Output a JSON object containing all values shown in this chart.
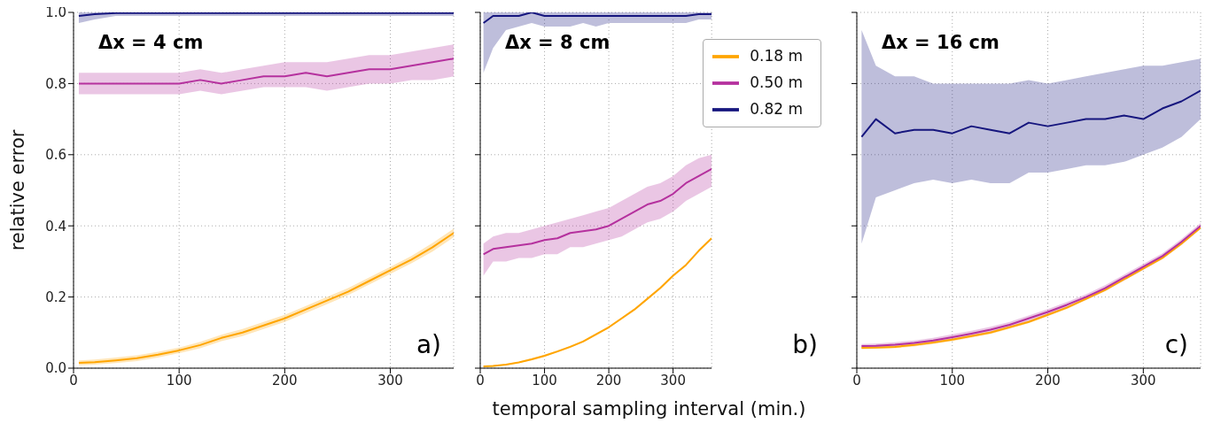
{
  "chart_data": [
    {
      "type": "line",
      "ylabel": "relative error",
      "annotations": [
        "Δx = 4 cm",
        "a)"
      ],
      "x": [
        5,
        20,
        40,
        60,
        80,
        100,
        120,
        140,
        160,
        180,
        200,
        220,
        240,
        260,
        280,
        300,
        320,
        340,
        360
      ],
      "xlim": [
        0,
        360
      ],
      "xticks": [
        0,
        100,
        200,
        300
      ],
      "ylim": [
        0,
        1
      ],
      "yticks": [
        {
          "value": 0,
          "label": "0.0"
        },
        0.2,
        0.4,
        0.6,
        0.8,
        {
          "value": 1,
          "label": "1.0"
        }
      ],
      "grid": true,
      "legend": false,
      "series": [
        {
          "color": "#ffa500",
          "values": [
            0.015,
            0.017,
            0.022,
            0.028,
            0.038,
            0.05,
            0.065,
            0.085,
            0.1,
            0.12,
            0.14,
            0.165,
            0.19,
            0.215,
            0.245,
            0.275,
            0.305,
            0.34,
            0.38
          ],
          "lower": [
            0.008,
            0.01,
            0.014,
            0.02,
            0.03,
            0.042,
            0.056,
            0.076,
            0.09,
            0.11,
            0.13,
            0.155,
            0.18,
            0.205,
            0.235,
            0.265,
            0.295,
            0.328,
            0.368
          ],
          "upper": [
            0.022,
            0.024,
            0.03,
            0.036,
            0.046,
            0.058,
            0.074,
            0.094,
            0.11,
            0.13,
            0.15,
            0.175,
            0.2,
            0.225,
            0.255,
            0.285,
            0.315,
            0.352,
            0.392
          ]
        },
        {
          "color": "#b5319e",
          "values": [
            0.8,
            0.8,
            0.8,
            0.8,
            0.8,
            0.8,
            0.81,
            0.8,
            0.81,
            0.82,
            0.82,
            0.83,
            0.82,
            0.83,
            0.84,
            0.84,
            0.85,
            0.86,
            0.87
          ],
          "lower": [
            0.77,
            0.77,
            0.77,
            0.77,
            0.77,
            0.77,
            0.78,
            0.77,
            0.78,
            0.79,
            0.79,
            0.79,
            0.78,
            0.79,
            0.8,
            0.8,
            0.81,
            0.81,
            0.82
          ],
          "upper": [
            0.83,
            0.83,
            0.83,
            0.83,
            0.83,
            0.83,
            0.84,
            0.83,
            0.84,
            0.85,
            0.86,
            0.86,
            0.86,
            0.87,
            0.88,
            0.88,
            0.89,
            0.9,
            0.91
          ]
        },
        {
          "color": "#16167e",
          "values": [
            0.99,
            0.995,
            0.998,
            0.998,
            0.998,
            0.998,
            0.998,
            0.998,
            0.998,
            0.998,
            0.998,
            0.998,
            0.998,
            0.998,
            0.998,
            0.998,
            0.998,
            0.998,
            0.998
          ],
          "lower": [
            0.97,
            0.98,
            0.99,
            0.99,
            0.99,
            0.99,
            0.99,
            0.99,
            0.99,
            0.99,
            0.99,
            0.99,
            0.99,
            0.99,
            0.99,
            0.99,
            0.99,
            0.99,
            0.99
          ],
          "upper": [
            1,
            1,
            1,
            1,
            1,
            1,
            1,
            1,
            1,
            1,
            1,
            1,
            1,
            1,
            1,
            1,
            1,
            1,
            1
          ]
        }
      ]
    },
    {
      "type": "line",
      "xlabel": "temporal sampling interval (min.)",
      "annotations": [
        "Δx = 8 cm",
        "b)"
      ],
      "x": [
        5,
        20,
        40,
        60,
        80,
        100,
        120,
        140,
        160,
        180,
        200,
        220,
        240,
        260,
        280,
        300,
        320,
        340,
        360
      ],
      "xlim": [
        0,
        360
      ],
      "xticks": [
        0,
        100,
        200,
        300
      ],
      "ylim": [
        0,
        1
      ],
      "yticks": [
        0,
        0.2,
        0.4,
        0.6,
        0.8,
        1
      ],
      "tick_labels": "x",
      "grid": true,
      "legend": "top right",
      "series": [
        {
          "name": "0.18 m",
          "color": "#ffa500",
          "values": [
            0.005,
            0.006,
            0.01,
            0.016,
            0.025,
            0.035,
            0.047,
            0.06,
            0.075,
            0.095,
            0.115,
            0.14,
            0.165,
            0.195,
            0.225,
            0.26,
            0.29,
            0.33,
            0.365
          ],
          "lower": [
            0.003,
            0.004,
            0.008,
            0.014,
            0.022,
            0.032,
            0.044,
            0.057,
            0.072,
            0.092,
            0.112,
            0.137,
            0.162,
            0.192,
            0.222,
            0.257,
            0.287,
            0.327,
            0.362
          ],
          "upper": [
            0.007,
            0.008,
            0.012,
            0.018,
            0.028,
            0.038,
            0.05,
            0.063,
            0.078,
            0.098,
            0.118,
            0.143,
            0.168,
            0.198,
            0.228,
            0.263,
            0.293,
            0.333,
            0.368
          ]
        },
        {
          "name": "0.50 m",
          "color": "#b5319e",
          "values": [
            0.32,
            0.335,
            0.34,
            0.345,
            0.35,
            0.36,
            0.365,
            0.38,
            0.385,
            0.39,
            0.4,
            0.42,
            0.44,
            0.46,
            0.47,
            0.49,
            0.52,
            0.54,
            0.56
          ],
          "lower": [
            0.26,
            0.3,
            0.3,
            0.31,
            0.31,
            0.32,
            0.32,
            0.34,
            0.34,
            0.35,
            0.36,
            0.37,
            0.39,
            0.41,
            0.42,
            0.44,
            0.47,
            0.49,
            0.51
          ],
          "upper": [
            0.35,
            0.37,
            0.38,
            0.38,
            0.39,
            0.4,
            0.41,
            0.42,
            0.43,
            0.44,
            0.45,
            0.47,
            0.49,
            0.51,
            0.52,
            0.54,
            0.57,
            0.59,
            0.6
          ]
        },
        {
          "name": "0.82 m",
          "color": "#16167e",
          "values": [
            0.97,
            0.99,
            0.99,
            0.99,
            1,
            0.99,
            0.99,
            0.99,
            0.99,
            0.99,
            0.99,
            0.99,
            0.99,
            0.99,
            0.99,
            0.99,
            0.99,
            0.995,
            0.995
          ],
          "lower": [
            0.83,
            0.9,
            0.95,
            0.96,
            0.97,
            0.96,
            0.96,
            0.96,
            0.97,
            0.96,
            0.97,
            0.97,
            0.97,
            0.97,
            0.97,
            0.97,
            0.97,
            0.98,
            0.98
          ],
          "upper": [
            1,
            1,
            1,
            1,
            1,
            1,
            1,
            1,
            1,
            1,
            1,
            1,
            1,
            1,
            1,
            1,
            1,
            1,
            1
          ]
        }
      ]
    },
    {
      "type": "line",
      "annotations": [
        "Δx = 16 cm",
        "c)"
      ],
      "x": [
        5,
        20,
        40,
        60,
        80,
        100,
        120,
        140,
        160,
        180,
        200,
        220,
        240,
        260,
        280,
        300,
        320,
        340,
        360
      ],
      "xlim": [
        0,
        360
      ],
      "xticks": [
        0,
        100,
        200,
        300
      ],
      "ylim": [
        0,
        1
      ],
      "yticks": [
        0,
        0.2,
        0.4,
        0.6,
        0.8,
        1
      ],
      "tick_labels": "x",
      "grid": true,
      "legend": false,
      "series": [
        {
          "color": "#ffa500",
          "values": [
            0.057,
            0.058,
            0.06,
            0.065,
            0.072,
            0.08,
            0.09,
            0.1,
            0.115,
            0.13,
            0.15,
            0.17,
            0.195,
            0.22,
            0.25,
            0.28,
            0.31,
            0.35,
            0.395
          ],
          "lower": [
            0.053,
            0.054,
            0.056,
            0.061,
            0.068,
            0.076,
            0.086,
            0.096,
            0.111,
            0.126,
            0.146,
            0.166,
            0.191,
            0.216,
            0.246,
            0.276,
            0.306,
            0.346,
            0.391
          ],
          "upper": [
            0.061,
            0.062,
            0.064,
            0.069,
            0.076,
            0.084,
            0.094,
            0.104,
            0.119,
            0.134,
            0.154,
            0.174,
            0.199,
            0.224,
            0.254,
            0.284,
            0.314,
            0.354,
            0.399
          ]
        },
        {
          "color": "#b5319e",
          "values": [
            0.062,
            0.063,
            0.066,
            0.071,
            0.078,
            0.087,
            0.097,
            0.108,
            0.122,
            0.14,
            0.158,
            0.178,
            0.2,
            0.225,
            0.255,
            0.285,
            0.315,
            0.355,
            0.4
          ],
          "lower": [
            0.056,
            0.057,
            0.059,
            0.064,
            0.071,
            0.079,
            0.089,
            0.1,
            0.114,
            0.132,
            0.15,
            0.17,
            0.192,
            0.217,
            0.247,
            0.277,
            0.307,
            0.347,
            0.392
          ],
          "upper": [
            0.068,
            0.069,
            0.073,
            0.078,
            0.085,
            0.095,
            0.105,
            0.116,
            0.13,
            0.148,
            0.166,
            0.186,
            0.208,
            0.233,
            0.263,
            0.293,
            0.323,
            0.363,
            0.408
          ]
        },
        {
          "color": "#16167e",
          "values": [
            0.65,
            0.7,
            0.66,
            0.67,
            0.67,
            0.66,
            0.68,
            0.67,
            0.66,
            0.69,
            0.68,
            0.69,
            0.7,
            0.7,
            0.71,
            0.7,
            0.73,
            0.75,
            0.78
          ],
          "lower": [
            0.35,
            0.48,
            0.5,
            0.52,
            0.53,
            0.52,
            0.53,
            0.52,
            0.52,
            0.55,
            0.55,
            0.56,
            0.57,
            0.57,
            0.58,
            0.6,
            0.62,
            0.65,
            0.7
          ],
          "upper": [
            0.95,
            0.85,
            0.82,
            0.82,
            0.8,
            0.8,
            0.8,
            0.8,
            0.8,
            0.81,
            0.8,
            0.81,
            0.82,
            0.83,
            0.84,
            0.85,
            0.85,
            0.86,
            0.87
          ]
        }
      ]
    }
  ]
}
